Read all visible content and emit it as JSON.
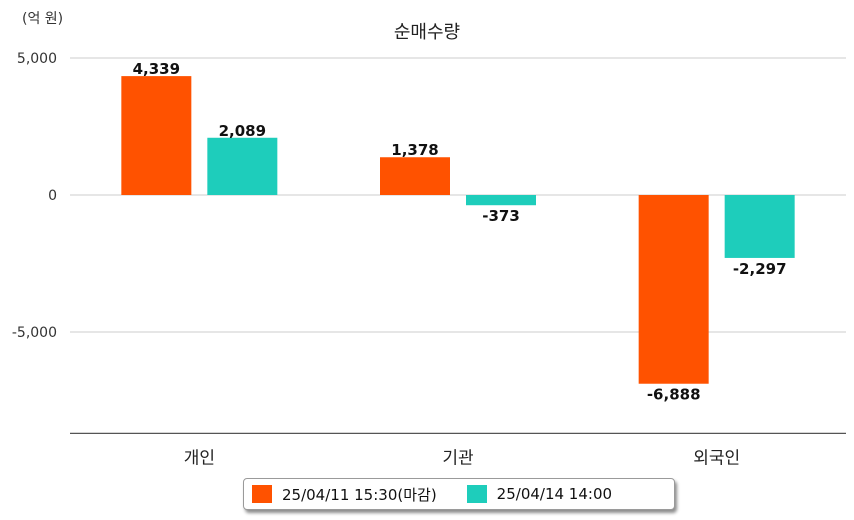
{
  "unit_label": "(억 원)",
  "colors": {
    "series1": "#ff5200",
    "series2": "#1ecdbb",
    "grid": "#cccccc",
    "axis": "#555555"
  },
  "chart_data": {
    "type": "bar",
    "title": "순매수량",
    "categories": [
      "개인",
      "기관",
      "외국인"
    ],
    "series": [
      {
        "name": "25/04/11 15:30(마감)",
        "values": [
          4339,
          1378,
          -6888
        ],
        "labels": [
          "4,339",
          "1,378",
          "-6,888"
        ]
      },
      {
        "name": "25/04/14 14:00",
        "values": [
          2089,
          -373,
          -2297
        ],
        "labels": [
          "2,089",
          "-373",
          "-2,297"
        ]
      }
    ],
    "yticks": [
      5000,
      0,
      -5000
    ],
    "ytick_labels": [
      "5,000",
      "0",
      "-5,000"
    ],
    "ylim": [
      -8700,
      5000
    ],
    "grid": true,
    "legend_position": "bottom"
  }
}
